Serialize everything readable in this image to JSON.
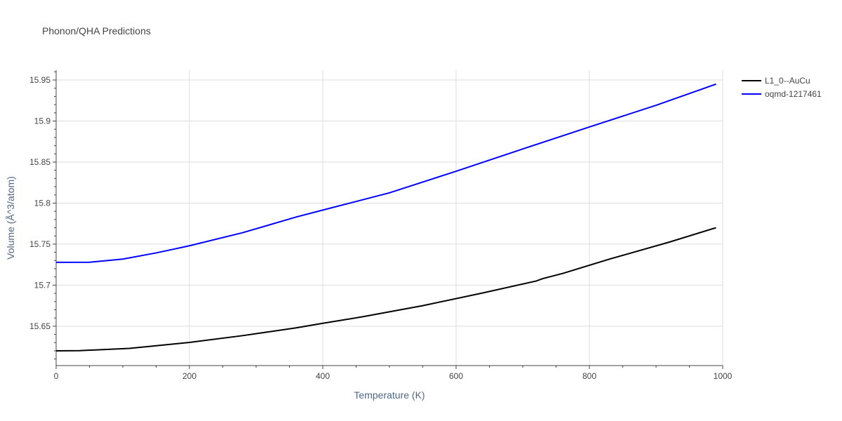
{
  "chart_data": {
    "type": "line",
    "title": "Phonon/QHA Predictions",
    "xlabel": "Temperature (K)",
    "ylabel": "Volume (Å^3/atom)",
    "xlim": [
      0,
      1000
    ],
    "ylim": [
      15.602,
      15.962
    ],
    "xticks": [
      0,
      200,
      400,
      600,
      800,
      1000
    ],
    "xtick_labels": [
      "0",
      "200",
      "400",
      "600",
      "800",
      "1000"
    ],
    "yticks": [
      15.65,
      15.7,
      15.75,
      15.8,
      15.85,
      15.9,
      15.95
    ],
    "ytick_labels": [
      "15.65",
      "15.7",
      "15.75",
      "15.8",
      "15.85",
      "15.9",
      "15.95"
    ],
    "grid": true,
    "legend_position": "top-right",
    "series": [
      {
        "name": "L1_0--AuCu",
        "color": "#000000",
        "x": [
          0,
          35,
          70,
          110,
          150,
          200,
          280,
          360,
          400,
          460,
          550,
          640,
          720,
          730,
          760,
          830,
          920,
          990
        ],
        "y": [
          15.62,
          15.6202,
          15.6215,
          15.623,
          15.6262,
          15.6302,
          15.6385,
          15.648,
          15.6535,
          15.6615,
          15.675,
          15.6905,
          15.705,
          15.708,
          15.7143,
          15.7317,
          15.7525,
          15.77
        ]
      },
      {
        "name": "oqmd-1217461",
        "color": "#0000ff",
        "x": [
          0,
          50,
          100,
          150,
          200,
          280,
          360,
          400,
          500,
          600,
          700,
          800,
          900,
          990
        ],
        "y": [
          15.7278,
          15.7279,
          15.7318,
          15.7393,
          15.748,
          15.764,
          15.783,
          15.7915,
          15.8125,
          15.8388,
          15.866,
          15.8928,
          15.9192,
          15.945
        ]
      }
    ]
  }
}
